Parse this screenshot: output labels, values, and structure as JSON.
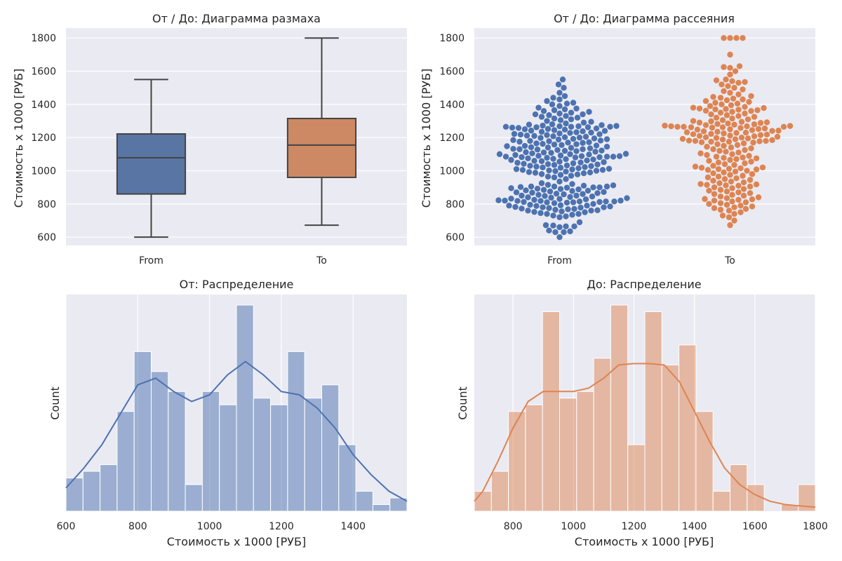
{
  "colors": {
    "from": "#4c72b0",
    "to": "#dd8452",
    "box_from": "#5975a4",
    "box_to": "#cc8963",
    "panel_bg": "#eaeaf2",
    "line": "#444444"
  },
  "chart_data": [
    {
      "id": "box",
      "type": "box",
      "title": "От / До: Диаграмма размаха",
      "ylabel": "Стоимость х 1000 [РУБ]",
      "xlabel": "",
      "ylim": [
        550,
        1860
      ],
      "yticks": [
        600,
        800,
        1000,
        1200,
        1400,
        1600,
        1800
      ],
      "grid": true,
      "categories": [
        "From",
        "To"
      ],
      "series": [
        {
          "category": "From",
          "min": 600,
          "q1": 860,
          "median": 1078,
          "q3": 1222,
          "max": 1550
        },
        {
          "category": "To",
          "min": 672,
          "q1": 960,
          "median": 1155,
          "q3": 1315,
          "max": 1800
        }
      ]
    },
    {
      "id": "swarm",
      "type": "scatter",
      "title": "От / До: Диаграмма рассеяния",
      "ylabel": "Стоимость х 1000 [РУБ]",
      "xlabel": "",
      "ylim": [
        550,
        1860
      ],
      "yticks": [
        600,
        800,
        1000,
        1200,
        1400,
        1600,
        1800
      ],
      "grid": true,
      "categories": [
        "From",
        "To"
      ],
      "series": [
        {
          "category": "From",
          "values": [
            600,
            630,
            630,
            635,
            640,
            660,
            665,
            665,
            670,
            672,
            690,
            720,
            725,
            730,
            735,
            740,
            740,
            745,
            750,
            752,
            755,
            760,
            760,
            762,
            765,
            768,
            770,
            772,
            775,
            778,
            780,
            780,
            782,
            785,
            788,
            790,
            790,
            792,
            795,
            800,
            805,
            808,
            810,
            810,
            812,
            812,
            815,
            815,
            815,
            818,
            818,
            820,
            820,
            822,
            825,
            828,
            830,
            832,
            835,
            838,
            840,
            842,
            845,
            848,
            850,
            850,
            855,
            858,
            860,
            862,
            865,
            868,
            870,
            872,
            875,
            878,
            880,
            882,
            885,
            888,
            890,
            892,
            895,
            898,
            900,
            900,
            902,
            905,
            905,
            905,
            910,
            912,
            915,
            920,
            925,
            935,
            950,
            960,
            965,
            970,
            975,
            978,
            980,
            985,
            988,
            990,
            992,
            995,
            998,
            1000,
            1002,
            1005,
            1005,
            1008,
            1010,
            1012,
            1015,
            1018,
            1020,
            1022,
            1025,
            1028,
            1030,
            1032,
            1035,
            1038,
            1040,
            1042,
            1045,
            1048,
            1050,
            1052,
            1055,
            1058,
            1060,
            1062,
            1065,
            1068,
            1070,
            1072,
            1075,
            1078,
            1080,
            1082,
            1082,
            1085,
            1085,
            1085,
            1088,
            1088,
            1090,
            1092,
            1095,
            1098,
            1100,
            1100,
            1102,
            1105,
            1108,
            1110,
            1112,
            1115,
            1118,
            1120,
            1122,
            1125,
            1128,
            1130,
            1130,
            1132,
            1135,
            1138,
            1140,
            1142,
            1145,
            1148,
            1150,
            1152,
            1155,
            1158,
            1160,
            1162,
            1165,
            1168,
            1170,
            1172,
            1175,
            1178,
            1180,
            1182,
            1185,
            1188,
            1190,
            1192,
            1195,
            1198,
            1200,
            1202,
            1205,
            1208,
            1210,
            1212,
            1215,
            1218,
            1220,
            1222,
            1225,
            1228,
            1230,
            1232,
            1235,
            1238,
            1240,
            1242,
            1245,
            1248,
            1250,
            1252,
            1255,
            1258,
            1260,
            1262,
            1262,
            1265,
            1265,
            1265,
            1268,
            1268,
            1270,
            1272,
            1275,
            1278,
            1280,
            1285,
            1290,
            1295,
            1300,
            1305,
            1310,
            1315,
            1320,
            1325,
            1330,
            1335,
            1340,
            1340,
            1345,
            1350,
            1355,
            1360,
            1365,
            1370,
            1375,
            1380,
            1390,
            1400,
            1405,
            1410,
            1420,
            1430,
            1440,
            1450,
            1470,
            1500,
            1520,
            1550
          ]
        },
        {
          "category": "To",
          "values": [
            672,
            700,
            720,
            730,
            740,
            750,
            760,
            765,
            770,
            775,
            780,
            785,
            790,
            795,
            800,
            805,
            810,
            815,
            820,
            825,
            828,
            830,
            835,
            840,
            845,
            850,
            855,
            860,
            865,
            870,
            875,
            880,
            885,
            890,
            895,
            900,
            905,
            910,
            912,
            915,
            918,
            920,
            925,
            930,
            935,
            940,
            945,
            950,
            955,
            960,
            965,
            970,
            975,
            980,
            985,
            990,
            995,
            1000,
            1005,
            1008,
            1010,
            1012,
            1015,
            1018,
            1020,
            1025,
            1030,
            1035,
            1040,
            1045,
            1050,
            1055,
            1060,
            1065,
            1070,
            1075,
            1078,
            1080,
            1085,
            1090,
            1095,
            1100,
            1105,
            1110,
            1115,
            1120,
            1125,
            1130,
            1135,
            1140,
            1145,
            1150,
            1155,
            1160,
            1165,
            1170,
            1172,
            1175,
            1175,
            1178,
            1180,
            1180,
            1182,
            1185,
            1188,
            1190,
            1192,
            1195,
            1198,
            1200,
            1202,
            1205,
            1208,
            1210,
            1212,
            1215,
            1218,
            1220,
            1222,
            1225,
            1228,
            1230,
            1232,
            1235,
            1238,
            1240,
            1242,
            1245,
            1248,
            1250,
            1252,
            1255,
            1258,
            1260,
            1262,
            1262,
            1265,
            1265,
            1265,
            1268,
            1268,
            1270,
            1272,
            1275,
            1278,
            1280,
            1282,
            1285,
            1288,
            1290,
            1292,
            1295,
            1298,
            1300,
            1305,
            1310,
            1315,
            1320,
            1325,
            1330,
            1335,
            1340,
            1345,
            1350,
            1355,
            1360,
            1362,
            1365,
            1368,
            1370,
            1372,
            1375,
            1378,
            1380,
            1385,
            1390,
            1395,
            1400,
            1405,
            1410,
            1415,
            1420,
            1425,
            1430,
            1435,
            1440,
            1445,
            1450,
            1460,
            1470,
            1480,
            1490,
            1500,
            1510,
            1520,
            1530,
            1535,
            1540,
            1545,
            1550,
            1580,
            1600,
            1620,
            1625,
            1630,
            1700,
            1800,
            1800,
            1800,
            1800
          ]
        }
      ]
    },
    {
      "id": "hist_from",
      "type": "bar",
      "title": "От: Распределение",
      "xlabel": "Стоимость х 1000 [РУБ]",
      "ylabel": "Count",
      "xlim": [
        600,
        1550
      ],
      "xticks": [
        600,
        800,
        1000,
        1200,
        1400
      ],
      "grid": true,
      "bin_edges": [
        600,
        647.5,
        695,
        742.5,
        790,
        837.5,
        885,
        932.5,
        980,
        1027.5,
        1075,
        1122.5,
        1170,
        1217.5,
        1265,
        1312.5,
        1360,
        1407.5,
        1455,
        1502.5,
        1550
      ],
      "counts": [
        5,
        6,
        7,
        15,
        24,
        21,
        18,
        4,
        18,
        16,
        31,
        17,
        16,
        24,
        17,
        19,
        10,
        3,
        1,
        2
      ],
      "kde_x": [
        600,
        650,
        700,
        750,
        800,
        850,
        900,
        950,
        1000,
        1050,
        1100,
        1150,
        1200,
        1250,
        1300,
        1350,
        1400,
        1450,
        1500,
        1550
      ],
      "kde_y": [
        3.5,
        6.5,
        10,
        14.5,
        19,
        20,
        18,
        16.5,
        17.5,
        20.5,
        22.5,
        20.5,
        18,
        17.5,
        15.5,
        12.5,
        8.5,
        5.5,
        3,
        1.5
      ]
    },
    {
      "id": "hist_to",
      "type": "bar",
      "title": "До: Распределение",
      "xlabel": "Стоимость х 1000 [РУБ]",
      "ylabel": "Count",
      "xlim": [
        672,
        1800
      ],
      "xticks": [
        800,
        1000,
        1200,
        1400,
        1600,
        1800
      ],
      "grid": true,
      "bin_edges": [
        672,
        728.4,
        784.8,
        841.2,
        897.6,
        954,
        1010.4,
        1066.8,
        1123.2,
        1179.6,
        1236,
        1292.4,
        1348.8,
        1405.2,
        1461.6,
        1518,
        1574.4,
        1630.8,
        1687.2,
        1743.6,
        1800
      ],
      "counts": [
        3,
        6,
        15,
        16,
        30,
        17,
        18,
        23,
        31,
        10,
        30,
        22,
        25,
        15,
        3,
        7,
        4,
        0,
        1,
        4
      ],
      "kde_x": [
        672,
        700,
        750,
        800,
        850,
        900,
        950,
        1000,
        1050,
        1100,
        1150,
        1200,
        1250,
        1300,
        1350,
        1400,
        1450,
        1500,
        1550,
        1600,
        1650,
        1700,
        1750,
        1800
      ],
      "kde_y": [
        1.5,
        3,
        7.5,
        12.5,
        16.5,
        18,
        18,
        18,
        18.5,
        20,
        22,
        22.2,
        22.2,
        22,
        19.5,
        15,
        10.5,
        6.5,
        4,
        2.5,
        1.5,
        1,
        0.8,
        0.6
      ]
    }
  ]
}
